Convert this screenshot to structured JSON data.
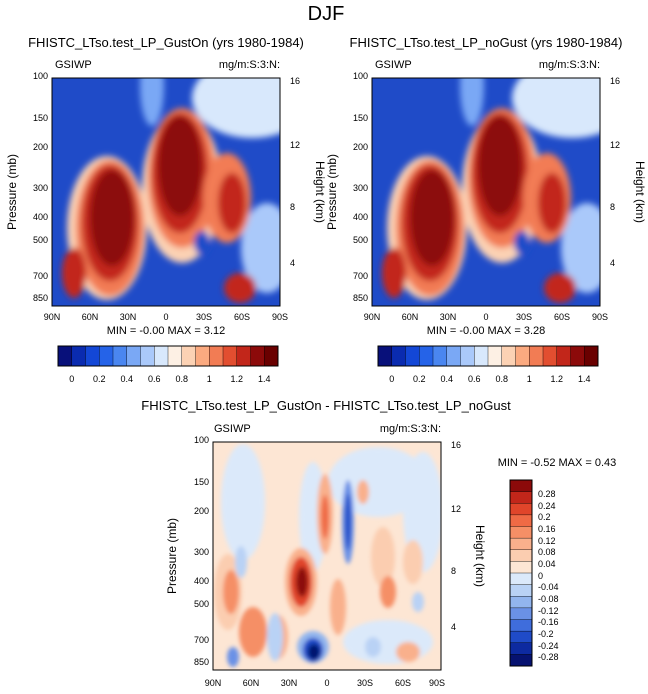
{
  "figure": {
    "title": "DJF"
  },
  "chart_data": [
    {
      "type": "heatmap",
      "title": "FHISTC_LTso.test_LP_GustOn (yrs 1980-1984)",
      "left_label": "GSIWP",
      "right_label": "mg/m:S:3:N:",
      "stats": {
        "text": "MIN = -0.00   MAX =  3.12",
        "min": -0.0,
        "max": 3.12
      },
      "xlabel": "",
      "ylabel": "Pressure (mb)",
      "y2label": "Height (km)",
      "xticks": [
        "90N",
        "60N",
        "30N",
        "0",
        "30S",
        "60S",
        "90S"
      ],
      "yticks": [
        100,
        150,
        200,
        300,
        400,
        500,
        700,
        850
      ],
      "y2ticks": [
        16,
        12,
        8,
        4
      ],
      "ylim": [
        100,
        900
      ],
      "colorbar": {
        "orientation": "horizontal",
        "labels": [
          "0",
          "0.2",
          "0.4",
          "0.6",
          "0.8",
          "1",
          "1.2",
          "1.4"
        ],
        "levels": [
          0,
          0.1,
          0.2,
          0.3,
          0.4,
          0.5,
          0.6,
          0.7,
          0.8,
          0.9,
          1.0,
          1.1,
          1.2,
          1.3,
          1.4
        ]
      }
    },
    {
      "type": "heatmap",
      "title": "FHISTC_LTso.test_LP_noGust (yrs 1980-1984)",
      "left_label": "GSIWP",
      "right_label": "mg/m:S:3:N:",
      "stats": {
        "text": "MIN = -0.00   MAX =  3.28",
        "min": -0.0,
        "max": 3.28
      },
      "xlabel": "",
      "ylabel": "Pressure (mb)",
      "y2label": "Height (km)",
      "xticks": [
        "90N",
        "60N",
        "30N",
        "0",
        "30S",
        "60S",
        "90S"
      ],
      "yticks": [
        100,
        150,
        200,
        300,
        400,
        500,
        700,
        850
      ],
      "y2ticks": [
        16,
        12,
        8,
        4
      ],
      "ylim": [
        100,
        900
      ],
      "colorbar": {
        "orientation": "horizontal",
        "labels": [
          "0",
          "0.2",
          "0.4",
          "0.6",
          "0.8",
          "1",
          "1.2",
          "1.4"
        ],
        "levels": [
          0,
          0.1,
          0.2,
          0.3,
          0.4,
          0.5,
          0.6,
          0.7,
          0.8,
          0.9,
          1.0,
          1.1,
          1.2,
          1.3,
          1.4
        ]
      }
    },
    {
      "type": "heatmap",
      "title": "FHISTC_LTso.test_LP_GustOn - FHISTC_LTso.test_LP_noGust",
      "left_label": "GSIWP",
      "right_label": "mg/m:S:3:N:",
      "stats": {
        "text": "MIN = -0.52   MAX =  0.43",
        "min": -0.52,
        "max": 0.43
      },
      "xlabel": "",
      "ylabel": "Pressure (mb)",
      "y2label": "Height (km)",
      "xticks": [
        "90N",
        "60N",
        "30N",
        "0",
        "30S",
        "60S",
        "90S"
      ],
      "yticks": [
        100,
        150,
        200,
        300,
        400,
        500,
        700,
        850
      ],
      "y2ticks": [
        16,
        12,
        8,
        4
      ],
      "ylim": [
        100,
        900
      ],
      "colorbar": {
        "orientation": "vertical",
        "labels": [
          "0.28",
          "0.24",
          "0.2",
          "0.16",
          "0.12",
          "0.08",
          "0.04",
          "0",
          "-0.04",
          "-0.08",
          "-0.12",
          "-0.16",
          "-0.2",
          "-0.24",
          "-0.28"
        ]
      }
    }
  ],
  "colors": {
    "seq": [
      "#08107a",
      "#0a2bb0",
      "#1347d6",
      "#2563e8",
      "#4a86f0",
      "#7aa8f5",
      "#aac9fa",
      "#d8e8fc",
      "#fdf0e4",
      "#fcd2b4",
      "#fbaa80",
      "#f27c54",
      "#e24e30",
      "#c2261a",
      "#8c0a0a",
      "#6a0000"
    ],
    "div": [
      "#8c0a0a",
      "#c2261a",
      "#e0452a",
      "#ef6a45",
      "#f58f66",
      "#f9b08c",
      "#fbcdb0",
      "#fde6d4",
      "#dbe9fa",
      "#b9d2f5",
      "#92b5ee",
      "#6a91e6",
      "#3f6ddc",
      "#1f4bc8",
      "#0d2aa0",
      "#061270"
    ]
  }
}
